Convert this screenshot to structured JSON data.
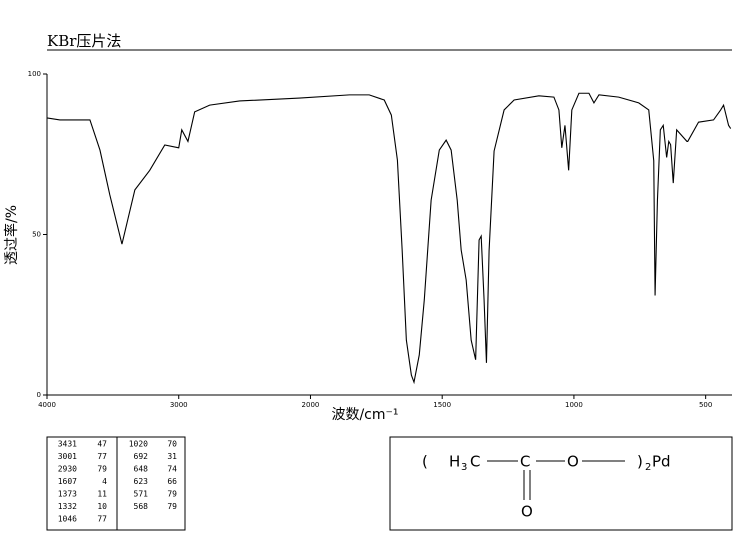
{
  "chart_data": {
    "type": "line",
    "title": "KBr压片法",
    "x_label": "波数/cm⁻¹",
    "y_label": "透过率/%",
    "xlim": [
      4000,
      400
    ],
    "xbreak": {
      "value": 2000,
      "density_ratio": 2
    },
    "ylim": [
      0,
      100
    ],
    "xticks": [
      4000,
      3000,
      2000,
      1500,
      1000,
      500
    ],
    "yticks": [
      0,
      50,
      100
    ],
    "series": [
      {
        "color": "#000000",
        "x": [
          4000,
          3902,
          3674,
          3598,
          3523,
          3431,
          3333,
          3220,
          3106,
          3000,
          2977,
          2930,
          2879,
          2765,
          2538,
          2083,
          1852,
          1777,
          1720,
          1693,
          1670,
          1652,
          1636,
          1617,
          1607,
          1587,
          1568,
          1542,
          1511,
          1485,
          1466,
          1443,
          1428,
          1409,
          1390,
          1373,
          1360,
          1352,
          1341,
          1332,
          1322,
          1303,
          1265,
          1227,
          1133,
          1076,
          1057,
          1046,
          1034,
          1020,
          1008,
          981,
          943,
          924,
          905,
          830,
          754,
          716,
          697,
          692,
          683,
          672,
          661,
          648,
          640,
          633,
          623,
          610,
          571,
          568,
          527,
          470,
          443,
          432,
          413,
          405
        ],
        "values": [
          86.3,
          85.7,
          85.7,
          76.3,
          62.3,
          47,
          63.9,
          70,
          77.9,
          77,
          82.6,
          79,
          88.2,
          90.3,
          91.6,
          92.5,
          93.5,
          93.5,
          91.9,
          87.2,
          73.2,
          45.2,
          17.1,
          6.2,
          4,
          12.5,
          29.6,
          60.7,
          76.3,
          79.4,
          76.3,
          60.7,
          45.2,
          35.8,
          17.1,
          11,
          48.3,
          49.5,
          29.6,
          10,
          45,
          76,
          88.8,
          91.9,
          93.2,
          92.8,
          88.8,
          77,
          84,
          70,
          88.8,
          94,
          94,
          91,
          93.5,
          92.8,
          91,
          88.8,
          73,
          31,
          60.7,
          82.6,
          84,
          74,
          79,
          78,
          66,
          82.6,
          79,
          79,
          85,
          85.7,
          88.8,
          90.3,
          84,
          83
        ]
      }
    ],
    "peaks": [
      [
        3431,
        47
      ],
      [
        3001,
        77
      ],
      [
        2930,
        79
      ],
      [
        1607,
        4
      ],
      [
        1373,
        11
      ],
      [
        1332,
        10
      ],
      [
        1046,
        77
      ],
      [
        1020,
        70
      ],
      [
        692,
        31
      ],
      [
        648,
        74
      ],
      [
        623,
        66
      ],
      [
        571,
        79
      ],
      [
        568,
        79
      ]
    ]
  },
  "structure": [
    "(",
    "H",
    "3",
    "C",
    "C",
    "O",
    ")",
    "2",
    "Pd",
    "O"
  ]
}
